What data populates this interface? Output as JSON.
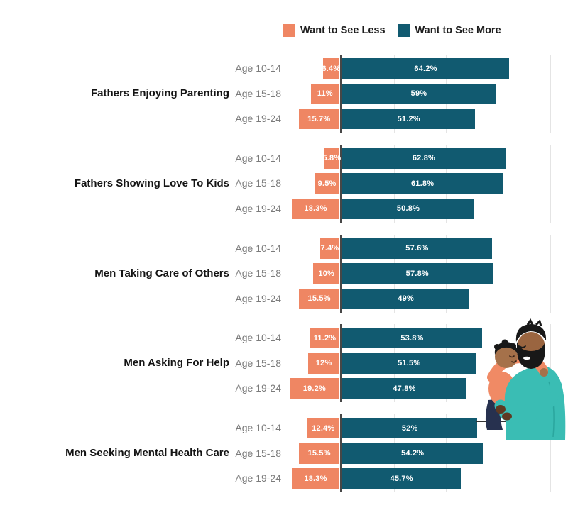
{
  "colors": {
    "less": "#EF8663",
    "more": "#115A70",
    "axis": "#474747",
    "gridline": "#E4E4E4",
    "category_text": "#141414",
    "age_text": "#7B7B7B",
    "value_text": "#FFFFFF",
    "ground_line": "#333333"
  },
  "legend": {
    "items": [
      {
        "label": "Want to See Less",
        "color_key": "less"
      },
      {
        "label": "Want to See More",
        "color_key": "more"
      }
    ]
  },
  "chart_data": {
    "type": "bar",
    "variant": "diverging-horizontal-grouped",
    "series": [
      {
        "name": "Want to See Less",
        "direction": "left",
        "color": "#EF8663"
      },
      {
        "name": "Want to See More",
        "direction": "right",
        "color": "#115A70"
      }
    ],
    "age_rows": [
      "Age 10-14",
      "Age 15-18",
      "Age 19-24"
    ],
    "groups": [
      {
        "category": "Fathers Enjoying Parenting",
        "rows": [
          {
            "age": "Age 10-14",
            "less": 6.4,
            "less_label": "6.4%",
            "more": 64.2,
            "more_label": "64.2%"
          },
          {
            "age": "Age 15-18",
            "less": 11,
            "less_label": "11%",
            "more": 59,
            "more_label": "59%"
          },
          {
            "age": "Age 19-24",
            "less": 15.7,
            "less_label": "15.7%",
            "more": 51.2,
            "more_label": "51.2%"
          }
        ]
      },
      {
        "category": "Fathers Showing Love To Kids",
        "rows": [
          {
            "age": "Age 10-14",
            "less": 5.8,
            "less_label": "5.8%",
            "more": 62.8,
            "more_label": "62.8%"
          },
          {
            "age": "Age 15-18",
            "less": 9.5,
            "less_label": "9.5%",
            "more": 61.8,
            "more_label": "61.8%"
          },
          {
            "age": "Age 19-24",
            "less": 18.3,
            "less_label": "18.3%",
            "more": 50.8,
            "more_label": "50.8%"
          }
        ]
      },
      {
        "category": "Men Taking Care of Others",
        "rows": [
          {
            "age": "Age 10-14",
            "less": 7.4,
            "less_label": "7.4%",
            "more": 57.6,
            "more_label": "57.6%"
          },
          {
            "age": "Age 15-18",
            "less": 10,
            "less_label": "10%",
            "more": 57.8,
            "more_label": "57.8%"
          },
          {
            "age": "Age 19-24",
            "less": 15.5,
            "less_label": "15.5%",
            "more": 49,
            "more_label": "49%"
          }
        ]
      },
      {
        "category": "Men Asking For Help",
        "rows": [
          {
            "age": "Age 10-14",
            "less": 11.2,
            "less_label": "11.2%",
            "more": 53.8,
            "more_label": "53.8%"
          },
          {
            "age": "Age 15-18",
            "less": 12,
            "less_label": "12%",
            "more": 51.5,
            "more_label": "51.5%"
          },
          {
            "age": "Age 19-24",
            "less": 19.2,
            "less_label": "19.2%",
            "more": 47.8,
            "more_label": "47.8%"
          }
        ]
      },
      {
        "category": "Men Seeking Mental Health Care",
        "rows": [
          {
            "age": "Age 10-14",
            "less": 12.4,
            "less_label": "12.4%",
            "more": 52,
            "more_label": "52%"
          },
          {
            "age": "Age 15-18",
            "less": 15.5,
            "less_label": "15.5%",
            "more": 54.2,
            "more_label": "54.2%"
          },
          {
            "age": "Age 19-24",
            "less": 18.3,
            "less_label": "18.3%",
            "more": 45.7,
            "more_label": "45.7%"
          }
        ]
      }
    ],
    "axis": {
      "unit": "percent",
      "zero_line": true,
      "gridline_interval_pct": 20,
      "left_extent_pct": -20,
      "right_extent_pct": 80,
      "tick_labels_visible": false
    },
    "legend_position": "top-center"
  },
  "illustration": {
    "name": "father-hugging-child",
    "palette": {
      "sweater": "#3ABDB4",
      "father_skin": "#9A6540",
      "child_skin": "#A5714A",
      "hair": "#181818",
      "child_top": "#F08A65",
      "child_pants": "#27314F",
      "hands": "#5F3A22"
    }
  }
}
